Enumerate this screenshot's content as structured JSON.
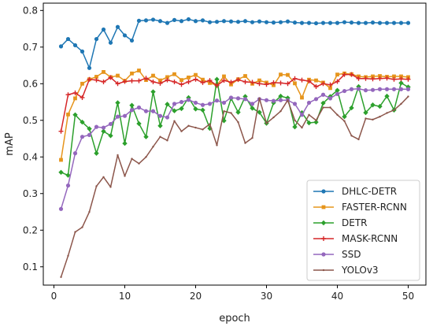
{
  "chart_data": {
    "type": "line",
    "xlabel": "epoch",
    "ylabel": "mAP",
    "xlim": [
      -1.5,
      52.5
    ],
    "ylim": [
      0.05,
      0.82
    ],
    "xticks": [
      0,
      10,
      20,
      30,
      40,
      50
    ],
    "yticks": [
      0.1,
      0.2,
      0.3,
      0.4,
      0.5,
      0.6,
      0.7,
      0.8
    ],
    "grid": false,
    "legend_position": "bottom-right",
    "x": [
      1,
      2,
      3,
      4,
      5,
      6,
      7,
      8,
      9,
      10,
      11,
      12,
      13,
      14,
      15,
      16,
      17,
      18,
      19,
      20,
      21,
      22,
      23,
      24,
      25,
      26,
      27,
      28,
      29,
      30,
      31,
      32,
      33,
      34,
      35,
      36,
      37,
      38,
      39,
      40,
      41,
      42,
      43,
      44,
      45,
      46,
      47,
      48,
      49,
      50
    ],
    "series": [
      {
        "name": "DHLC-DETR",
        "color": "#1f77b4",
        "marker": "circle",
        "values": [
          0.702,
          0.722,
          0.705,
          0.688,
          0.643,
          0.722,
          0.748,
          0.712,
          0.755,
          0.732,
          0.718,
          0.772,
          0.773,
          0.775,
          0.771,
          0.766,
          0.774,
          0.771,
          0.776,
          0.771,
          0.773,
          0.768,
          0.769,
          0.771,
          0.77,
          0.769,
          0.771,
          0.768,
          0.77,
          0.768,
          0.767,
          0.768,
          0.77,
          0.767,
          0.766,
          0.766,
          0.765,
          0.766,
          0.766,
          0.766,
          0.768,
          0.767,
          0.766,
          0.766,
          0.767,
          0.766,
          0.766,
          0.766,
          0.766,
          0.766
        ]
      },
      {
        "name": "FASTER-RCNN",
        "color": "#e6951c",
        "marker": "square",
        "values": [
          0.392,
          0.516,
          0.56,
          0.6,
          0.612,
          0.619,
          0.632,
          0.618,
          0.622,
          0.608,
          0.628,
          0.636,
          0.61,
          0.622,
          0.609,
          0.618,
          0.626,
          0.61,
          0.617,
          0.624,
          0.611,
          0.602,
          0.596,
          0.62,
          0.598,
          0.612,
          0.621,
          0.6,
          0.609,
          0.603,
          0.596,
          0.625,
          0.624,
          0.601,
          0.562,
          0.611,
          0.609,
          0.603,
          0.588,
          0.625,
          0.628,
          0.626,
          0.62,
          0.618,
          0.62,
          0.621,
          0.619,
          0.62,
          0.62,
          0.618
        ]
      },
      {
        "name": "DETR",
        "color": "#2ca02c",
        "marker": "diamond",
        "values": [
          0.358,
          0.35,
          0.515,
          0.495,
          0.477,
          0.41,
          0.47,
          0.458,
          0.548,
          0.437,
          0.541,
          0.491,
          0.455,
          0.578,
          0.485,
          0.544,
          0.526,
          0.532,
          0.562,
          0.531,
          0.528,
          0.478,
          0.612,
          0.499,
          0.56,
          0.522,
          0.565,
          0.533,
          0.522,
          0.492,
          0.548,
          0.566,
          0.561,
          0.482,
          0.521,
          0.493,
          0.495,
          0.547,
          0.565,
          0.582,
          0.51,
          0.534,
          0.592,
          0.521,
          0.542,
          0.538,
          0.566,
          0.528,
          0.602,
          0.591
        ]
      },
      {
        "name": "MASK-RCNN",
        "color": "#d62728",
        "marker": "plus",
        "values": [
          0.47,
          0.57,
          0.575,
          0.562,
          0.612,
          0.61,
          0.605,
          0.617,
          0.6,
          0.606,
          0.608,
          0.608,
          0.615,
          0.605,
          0.601,
          0.61,
          0.605,
          0.598,
          0.605,
          0.612,
          0.603,
          0.609,
          0.595,
          0.609,
          0.604,
          0.611,
          0.605,
          0.604,
          0.6,
          0.598,
          0.603,
          0.602,
          0.6,
          0.614,
          0.61,
          0.607,
          0.592,
          0.6,
          0.597,
          0.606,
          0.625,
          0.625,
          0.614,
          0.614,
          0.613,
          0.614,
          0.615,
          0.612,
          0.613,
          0.612
        ]
      },
      {
        "name": "SSD",
        "color": "#9467bd",
        "marker": "circle",
        "values": [
          0.258,
          0.322,
          0.41,
          0.455,
          0.46,
          0.482,
          0.48,
          0.49,
          0.51,
          0.512,
          0.528,
          0.535,
          0.525,
          0.525,
          0.512,
          0.508,
          0.545,
          0.55,
          0.556,
          0.548,
          0.542,
          0.545,
          0.554,
          0.548,
          0.562,
          0.56,
          0.558,
          0.545,
          0.558,
          0.555,
          0.553,
          0.555,
          0.555,
          0.545,
          0.515,
          0.548,
          0.558,
          0.57,
          0.56,
          0.572,
          0.58,
          0.585,
          0.586,
          0.582,
          0.583,
          0.585,
          0.585,
          0.585,
          0.585,
          0.585
        ]
      },
      {
        "name": "YOLOv3",
        "color": "#8c564b",
        "marker": "dot",
        "values": [
          0.072,
          0.13,
          0.195,
          0.208,
          0.25,
          0.32,
          0.345,
          0.318,
          0.405,
          0.348,
          0.395,
          0.382,
          0.4,
          0.428,
          0.455,
          0.445,
          0.498,
          0.47,
          0.485,
          0.48,
          0.475,
          0.49,
          0.432,
          0.525,
          0.52,
          0.495,
          0.438,
          0.452,
          0.56,
          0.492,
          0.508,
          0.525,
          0.555,
          0.5,
          0.48,
          0.515,
          0.5,
          0.535,
          0.535,
          0.515,
          0.498,
          0.458,
          0.448,
          0.505,
          0.502,
          0.51,
          0.52,
          0.528,
          0.545,
          0.565
        ]
      }
    ]
  }
}
